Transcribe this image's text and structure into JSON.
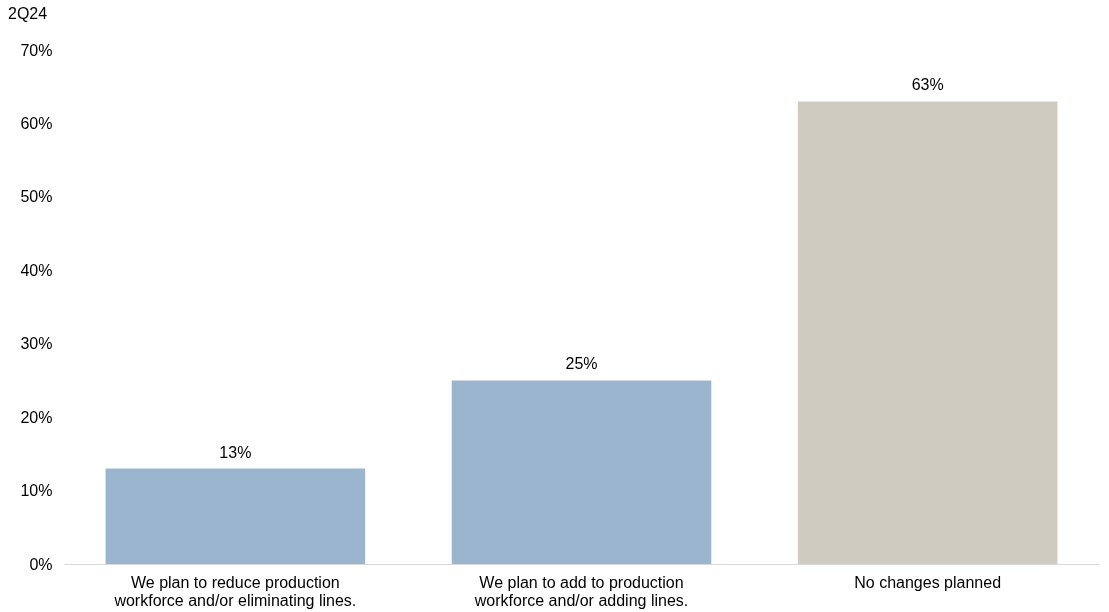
{
  "chart_data": {
    "type": "bar",
    "title": "2Q24",
    "categories": [
      "We plan to reduce production workforce and/or eliminating lines.",
      "We plan to add to production workforce and/or adding lines.",
      "No changes planned"
    ],
    "values": [
      13,
      25,
      63
    ],
    "colors": [
      "#9bb5cf",
      "#9bb5cf",
      "#d0cbc0"
    ],
    "value_labels": [
      "13%",
      "25%",
      "63%"
    ],
    "ylim": [
      0,
      70
    ],
    "yticks": [
      {
        "value": 0,
        "label": "0%"
      },
      {
        "value": 10,
        "label": "10%"
      },
      {
        "value": 20,
        "label": "20%"
      },
      {
        "value": 30,
        "label": "30%"
      },
      {
        "value": 40,
        "label": "40%"
      },
      {
        "value": 50,
        "label": "50%"
      },
      {
        "value": 60,
        "label": "60%"
      },
      {
        "value": 70,
        "label": "70%"
      }
    ],
    "grid": false
  }
}
